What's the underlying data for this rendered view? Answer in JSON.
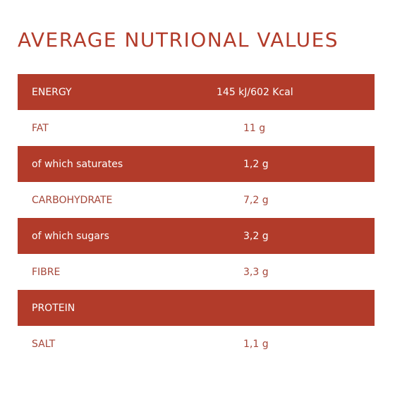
{
  "title": "AVERAGE NUTRIONAL VALUES",
  "rows": [
    {
      "label": "ENERGY",
      "value": "145 kJ/602  Kcal"
    },
    {
      "label": "FAT",
      "value": "11 g"
    },
    {
      "label": "of which saturates",
      "value": "1,2 g"
    },
    {
      "label": "CARBOHYDRATE",
      "value": "7,2 g"
    },
    {
      "label": "of which sugars",
      "value": "3,2 g"
    },
    {
      "label": "FIBRE",
      "value": "3,3 g"
    },
    {
      "label": "PROTEIN",
      "value": ""
    },
    {
      "label": "SALT",
      "value": "1,1 g"
    }
  ],
  "colors": {
    "accent": "#b23b2a",
    "plain_text": "#a5473a",
    "background": "#ffffff"
  }
}
